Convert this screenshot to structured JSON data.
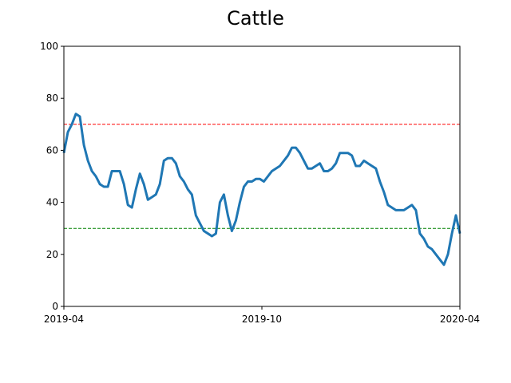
{
  "chart_data": {
    "type": "line",
    "title": "Cattle",
    "xlim": [
      "2019-04",
      "2020-04"
    ],
    "xticks": [
      "2019-04",
      "2019-10",
      "2020-04"
    ],
    "ylim": [
      0,
      100
    ],
    "yticks": [
      0,
      20,
      40,
      60,
      80,
      100
    ],
    "series": [
      {
        "color": "#1f77b4",
        "values": [
          59,
          67,
          70,
          74,
          73,
          62,
          56,
          52,
          50,
          47,
          46,
          46,
          52,
          52,
          52,
          47,
          39,
          38,
          45,
          51,
          47,
          41,
          42,
          43,
          47,
          56,
          57,
          57,
          55,
          50,
          48,
          45,
          43,
          35,
          32,
          29,
          28,
          27,
          28,
          40,
          43,
          35,
          29,
          33,
          40,
          46,
          48,
          48,
          49,
          49,
          48,
          50,
          52,
          53,
          54,
          56,
          58,
          61,
          61,
          59,
          56,
          53,
          53,
          54,
          55,
          52,
          52,
          53,
          55,
          59,
          59,
          59,
          58,
          54,
          54,
          56,
          55,
          54,
          53,
          48,
          44,
          39,
          38,
          37,
          37,
          37,
          38,
          39,
          37,
          28,
          26,
          23,
          22,
          20,
          18,
          16,
          20,
          28,
          35,
          28
        ]
      }
    ],
    "reference_lines": [
      {
        "value": 70,
        "color": "#ff0000"
      },
      {
        "value": 30,
        "color": "#008000"
      }
    ]
  }
}
